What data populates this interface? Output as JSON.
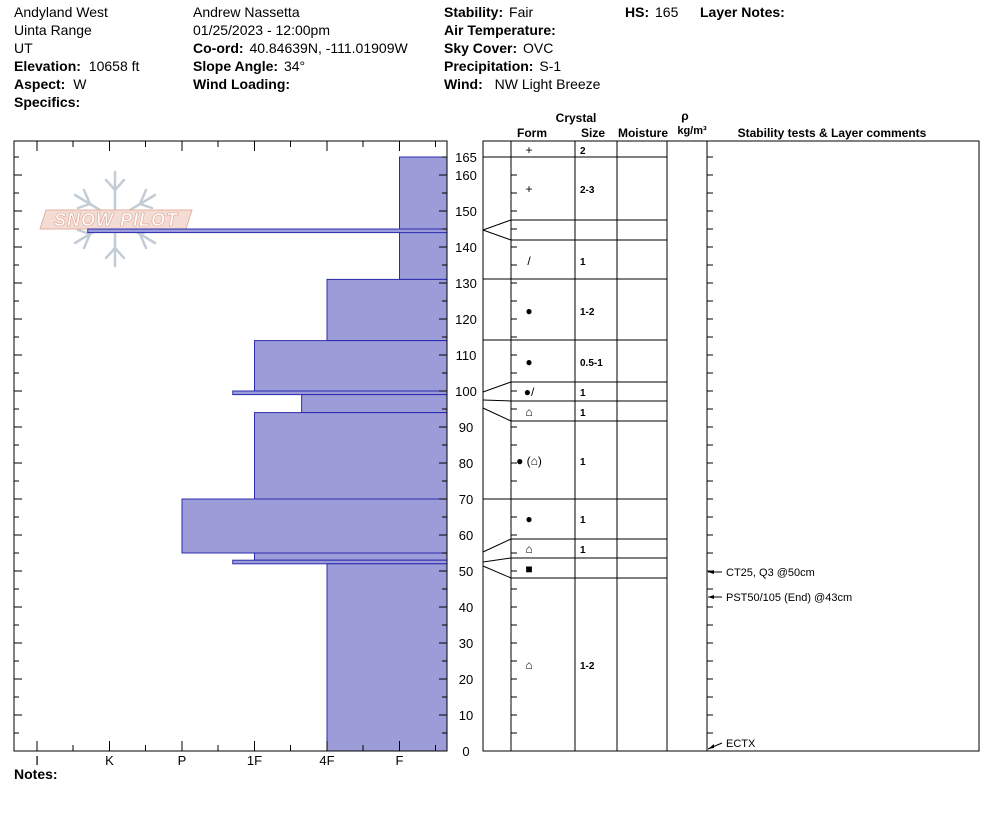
{
  "header": {
    "location": "Andyland West",
    "range": "Uinta Range",
    "state": "UT",
    "elevation_label": "Elevation:",
    "elevation": "10658 ft",
    "aspect_label": "Aspect:",
    "aspect": "W",
    "specifics_label": "Specifics:",
    "observer": "Andrew Nassetta",
    "datetime": "01/25/2023 - 12:00pm",
    "coord_label": "Co-ord:",
    "coord": "40.84639N, -111.01909W",
    "slope_label": "Slope Angle:",
    "slope": "34°",
    "wind_loading_label": "Wind Loading:",
    "stability_label": "Stability:",
    "stability": "Fair",
    "air_temp_label": "Air Temperature:",
    "sky_label": "Sky Cover:",
    "sky": "OVC",
    "precip_label": "Precipitation:",
    "precip": "S-1",
    "wind_label": "Wind:",
    "wind": "NW Light Breeze",
    "hs_label": "HS:",
    "hs": "165",
    "layer_notes_label": "Layer Notes:",
    "notes_label": "Notes:"
  },
  "logo_text": "SNOW PILOT",
  "columns": {
    "crystal": "Crystal",
    "form": "Form",
    "size": "Size",
    "moisture": "Moisture",
    "rho": "ρ",
    "density_unit": "kg/m³",
    "comments": "Stability tests & Layer comments"
  },
  "colors": {
    "layer_fill": "#9c9cd9",
    "layer_stroke": "#2b2bb0"
  },
  "chart_data": {
    "type": "bar",
    "x_axis_label": "",
    "hardness_ticks": [
      "I",
      "K",
      "P",
      "1F",
      "4F",
      "F"
    ],
    "y_range": [
      0,
      165
    ],
    "y_ticks": [
      0,
      10,
      20,
      30,
      40,
      50,
      60,
      70,
      80,
      90,
      100,
      110,
      120,
      130,
      140,
      150,
      160,
      165
    ],
    "hardness_index_note": "hardness values: I=1 K=2 P=3 1F=4 4F=5 F=6",
    "layers": [
      {
        "bottom": 131,
        "top": 165,
        "hardness": 6,
        "form": "+",
        "size": "2",
        "size2": "2-3"
      },
      {
        "bottom": 144,
        "top": 145,
        "hardness": 1.7,
        "form": "",
        "size": ""
      },
      {
        "bottom": 114,
        "top": 131,
        "hardness": 5,
        "form": "/",
        "size": "1"
      },
      {
        "bottom": 100,
        "top": 114,
        "hardness": 4,
        "form": "●",
        "size": "1-2"
      },
      {
        "bottom": 99,
        "top": 100,
        "hardness": 3.7,
        "form": "",
        "size": ""
      },
      {
        "bottom": 94,
        "top": 99,
        "hardness": 4.65,
        "form": "",
        "size": ""
      },
      {
        "bottom": 70,
        "top": 94,
        "hardness": 4,
        "form": "●",
        "size": "1"
      },
      {
        "bottom": 55,
        "top": 70,
        "hardness": 3,
        "form": "●",
        "size": "1"
      },
      {
        "bottom": 53,
        "top": 55,
        "hardness": 4,
        "form": "",
        "size": ""
      },
      {
        "bottom": 52,
        "top": 53,
        "hardness": 3.7,
        "form": "",
        "size": ""
      },
      {
        "bottom": 0,
        "top": 52,
        "hardness": 5,
        "form": "",
        "size": ""
      }
    ],
    "crystal_rows": [
      {
        "form": "+",
        "size": "2"
      },
      {
        "form": "+",
        "size": "2-3"
      },
      {
        "form": "/",
        "size": "1"
      },
      {
        "form": "●",
        "size": "1-2"
      },
      {
        "form": "●",
        "size": "0.5-1"
      },
      {
        "form": "●/",
        "size": "1"
      },
      {
        "form": "⌂",
        "size": "1"
      },
      {
        "form": "● (⌂)",
        "size": "1"
      },
      {
        "form": "●",
        "size": "1"
      },
      {
        "form": "⌂",
        "size": "1"
      },
      {
        "form": "■",
        "size": ""
      },
      {
        "form": "⌂",
        "size": "1-2"
      }
    ],
    "boundaries": [
      165,
      146,
      141,
      131,
      114,
      103,
      97,
      92,
      70,
      59,
      54,
      53,
      49
    ],
    "tests": [
      {
        "label": "CT25, Q3 @50cm",
        "depth": 50
      },
      {
        "label": "PST50/105 (End) @43cm",
        "depth": 43
      },
      {
        "label": "ECTX",
        "depth": 0
      }
    ]
  }
}
